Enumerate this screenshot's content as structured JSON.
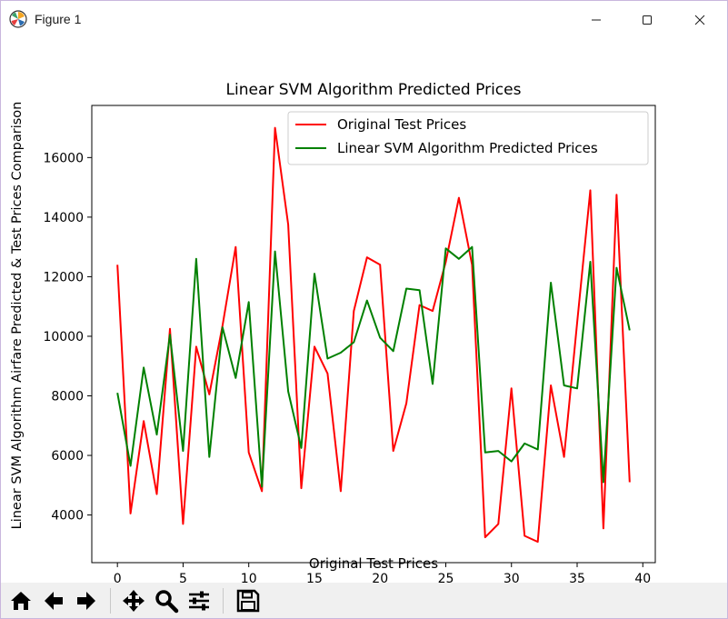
{
  "window": {
    "title": "Figure 1",
    "app_icon": "matplotlib-logo-icon",
    "controls": [
      "minimize-icon",
      "maximize-icon",
      "close-icon"
    ]
  },
  "toolbar": {
    "tools": [
      {
        "name": "home-icon"
      },
      {
        "name": "back-arrow-icon"
      },
      {
        "name": "forward-arrow-icon"
      },
      {
        "name": "pan-move-icon"
      },
      {
        "name": "zoom-magnifier-icon"
      },
      {
        "name": "configure-subplots-icon"
      },
      {
        "name": "save-floppy-icon"
      }
    ]
  },
  "chart_data": {
    "type": "line",
    "title": "Linear SVM Algorithm Predicted Prices",
    "xlabel": "Original Test Prices",
    "ylabel": "Linear SVM Algorithm Airfare Predicted & Test Prices Comparison",
    "xlim": [
      -1.95,
      40.95
    ],
    "ylim": [
      2400,
      17750
    ],
    "xticks": [
      0,
      5,
      10,
      15,
      20,
      25,
      30,
      35,
      40
    ],
    "yticks": [
      4000,
      6000,
      8000,
      10000,
      12000,
      14000,
      16000
    ],
    "grid": false,
    "legend_position": "top-right",
    "x": [
      0,
      1,
      2,
      3,
      4,
      5,
      6,
      7,
      8,
      9,
      10,
      11,
      12,
      13,
      14,
      15,
      16,
      17,
      18,
      19,
      20,
      21,
      22,
      23,
      24,
      25,
      26,
      27,
      28,
      29,
      30,
      31,
      32,
      33,
      34,
      35,
      36,
      37,
      38,
      39
    ],
    "series": [
      {
        "name": "Original Test Prices",
        "color": "#ff0000",
        "values": [
          12400,
          4050,
          7150,
          4700,
          10250,
          3700,
          9650,
          8050,
          10350,
          13000,
          6100,
          4800,
          17000,
          13750,
          4900,
          9650,
          8750,
          4800,
          10850,
          12650,
          12400,
          6150,
          7750,
          11050,
          10850,
          12500,
          14650,
          12400,
          3250,
          3700,
          8250,
          3300,
          3100,
          8350,
          5950,
          10450,
          14900,
          3550,
          14750,
          5100
        ]
      },
      {
        "name": "Linear SVM Algorithm Predicted Prices",
        "color": "#008000",
        "values": [
          8100,
          5650,
          8950,
          6700,
          10050,
          6150,
          12600,
          5950,
          10300,
          8600,
          11150,
          4950,
          12850,
          8150,
          6250,
          12100,
          9250,
          9450,
          9800,
          11200,
          9950,
          9500,
          11600,
          11550,
          8400,
          12950,
          12600,
          13000,
          6100,
          6150,
          5800,
          6400,
          6200,
          11800,
          8350,
          8250,
          12500,
          5100,
          12300,
          10200
        ]
      }
    ]
  }
}
